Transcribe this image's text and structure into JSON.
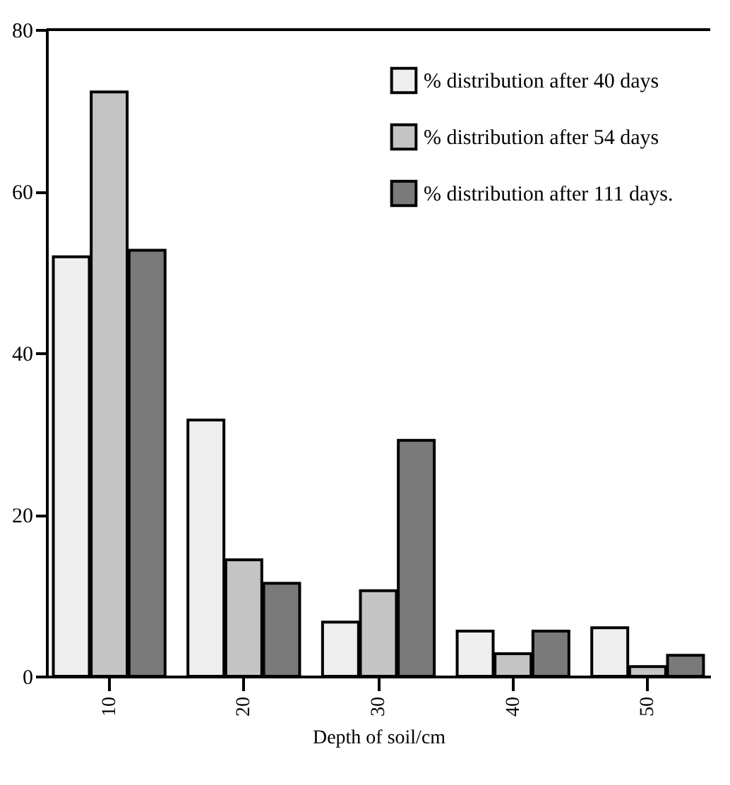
{
  "chart_data": {
    "type": "bar",
    "xlabel": "Depth of soil/cm",
    "categories": [
      "10",
      "20",
      "30",
      "40",
      "50"
    ],
    "series": [
      {
        "name": "% distribution after 40 days",
        "color": "#eeeeee",
        "values": [
          51.9,
          31.7,
          6.7,
          5.6,
          6.0
        ]
      },
      {
        "name": "% distribution after 54 days",
        "color": "#c4c4c4",
        "values": [
          72.3,
          14.4,
          10.6,
          2.8,
          1.2
        ]
      },
      {
        "name": "% distribution after 111 days.",
        "color": "#7a7a7a",
        "values": [
          52.7,
          11.5,
          29.2,
          5.6,
          2.6
        ]
      }
    ],
    "ylim": [
      0,
      80
    ],
    "yticks": [
      0,
      20,
      40,
      60,
      80
    ],
    "grid": false,
    "legend": "top right"
  }
}
